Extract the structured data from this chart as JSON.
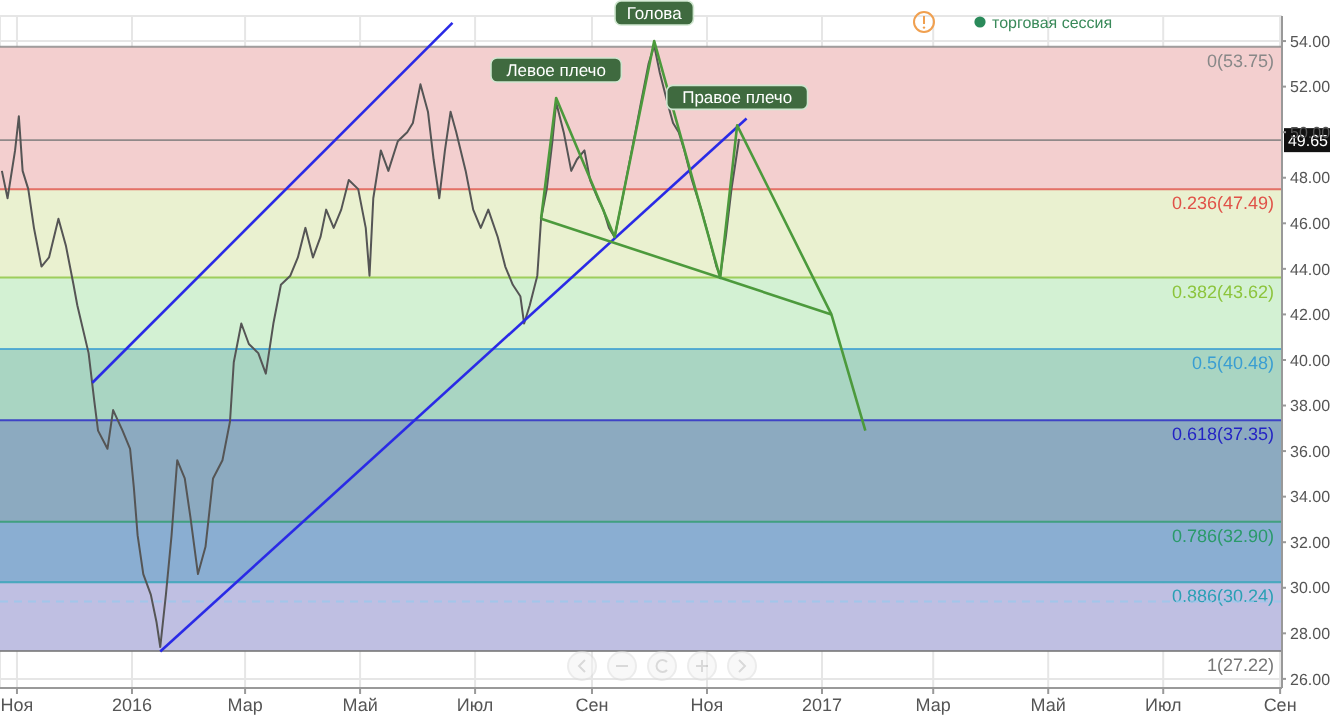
{
  "chart_data": {
    "type": "line",
    "marker": "none",
    "grid": true,
    "annotations": [
      "торговая сессия",
      {
        "text": "Левое плечо",
        "x": "2016-08-13",
        "y": 51.5
      },
      {
        "text": "Голова",
        "x": "2016-10-04",
        "y": 54.0
      },
      {
        "text": "Правое плечо",
        "x": "2016-11-17",
        "y": 50.3
      }
    ],
    "xlim": [
      "2015-10-23",
      "2017-09-02"
    ],
    "xticks": [
      {
        "value": "2015-11-01",
        "label": "Ноя"
      },
      {
        "value": "2016-01-01",
        "label": "2016"
      },
      {
        "value": "2016-03-01",
        "label": "Мар"
      },
      {
        "value": "2016-05-01",
        "label": "Май"
      },
      {
        "value": "2016-07-01",
        "label": "Июл"
      },
      {
        "value": "2016-09-01",
        "label": "Сен"
      },
      {
        "value": "2016-11-01",
        "label": "Ноя"
      },
      {
        "value": "2017-01-01",
        "label": "2017"
      },
      {
        "value": "2017-03-01",
        "label": "Мар"
      },
      {
        "value": "2017-05-01",
        "label": "Май"
      },
      {
        "value": "2017-07-01",
        "label": "Июл"
      },
      {
        "value": "2017-09-01",
        "label": "Сен"
      }
    ],
    "ylim": [
      25.6,
      55.1
    ],
    "yticks": [
      {
        "value": 26,
        "label": "26.00"
      },
      {
        "value": 28,
        "label": "28.00"
      },
      {
        "value": 30,
        "label": "30.00"
      },
      {
        "value": 32,
        "label": "32.00"
      },
      {
        "value": 34,
        "label": "34.00"
      },
      {
        "value": 36,
        "label": "36.00"
      },
      {
        "value": 38,
        "label": "38.00"
      },
      {
        "value": 40,
        "label": "40.00"
      },
      {
        "value": 42,
        "label": "42.00"
      },
      {
        "value": 44,
        "label": "44.00"
      },
      {
        "value": 46,
        "label": "46.00"
      },
      {
        "value": 48,
        "label": "48.00"
      },
      {
        "value": 50,
        "label": "50.00"
      },
      {
        "value": 52,
        "label": "52.00"
      },
      {
        "value": 54,
        "label": "54.00"
      }
    ],
    "bands": [
      {
        "axis": "y",
        "from": 47.49,
        "to": 53.75,
        "color": "#f3cfcf"
      },
      {
        "axis": "y",
        "from": 43.62,
        "to": 47.49,
        "color": "#eaf1d0"
      },
      {
        "axis": "y",
        "from": 40.48,
        "to": 43.62,
        "color": "#d3f1d3"
      },
      {
        "axis": "y",
        "from": 37.35,
        "to": 40.48,
        "color": "#a9d5c2"
      },
      {
        "axis": "y",
        "from": 32.9,
        "to": 37.35,
        "color": "#8caac0"
      },
      {
        "axis": "y",
        "from": 30.24,
        "to": 32.9,
        "color": "#8aaed2"
      },
      {
        "axis": "y",
        "from": 27.22,
        "to": 30.24,
        "color": "#bfbfe2"
      }
    ],
    "ref_lines": [
      {
        "axis": "y",
        "value": 53.75,
        "label": "0(53.75)",
        "color": "#888888"
      },
      {
        "axis": "y",
        "value": 47.49,
        "label": "0.236(47.49)",
        "color": "#e05248"
      },
      {
        "axis": "y",
        "value": 43.62,
        "label": "0.382(43.62)",
        "color": "#8cc43c"
      },
      {
        "axis": "y",
        "value": 40.48,
        "label": "0.5(40.48)",
        "color": "#3a9ed2"
      },
      {
        "axis": "y",
        "value": 37.35,
        "label": "0.618(37.35)",
        "color": "#2424c4"
      },
      {
        "axis": "y",
        "value": 32.9,
        "label": "0.786(32.90)",
        "color": "#2a9a6a"
      },
      {
        "axis": "y",
        "value": 30.24,
        "label": "0.886(30.24)",
        "color": "#2aa0b4"
      },
      {
        "axis": "y",
        "value": 27.22,
        "label": "1(27.22)",
        "color": "#777777"
      },
      {
        "axis": "y",
        "value": 49.65,
        "label": "49.65",
        "color": "#777777"
      },
      {
        "axis": "y",
        "value": 29.4,
        "color": "#9cc8ec",
        "line_style": "dashed"
      }
    ],
    "series": [
      {
        "color": "#555555",
        "x": [
          "2015-10-24",
          "2015-10-27",
          "2015-10-31",
          "2015-11-02",
          "2015-11-04",
          "2015-11-07",
          "2015-11-10",
          "2015-11-14",
          "2015-11-18",
          "2015-11-23",
          "2015-11-27",
          "2015-12-01",
          "2015-12-03",
          "2015-12-09",
          "2015-12-12",
          "2015-12-14",
          "2015-12-19",
          "2015-12-22",
          "2015-12-27",
          "2015-12-31",
          "2016-01-02",
          "2016-01-04",
          "2016-01-07",
          "2016-01-11",
          "2016-01-14",
          "2016-01-16",
          "2016-01-19",
          "2016-01-22",
          "2016-01-25",
          "2016-01-29",
          "2016-02-01",
          "2016-02-05",
          "2016-02-09",
          "2016-02-13",
          "2016-02-18",
          "2016-02-22",
          "2016-02-24",
          "2016-02-28",
          "2016-03-03",
          "2016-03-08",
          "2016-03-12",
          "2016-03-16",
          "2016-03-20",
          "2016-03-25",
          "2016-03-29",
          "2016-04-02",
          "2016-04-06",
          "2016-04-10",
          "2016-04-13",
          "2016-04-17",
          "2016-04-21",
          "2016-04-25",
          "2016-04-30",
          "2016-05-04",
          "2016-05-06",
          "2016-05-08",
          "2016-05-12",
          "2016-05-16",
          "2016-05-21",
          "2016-05-26",
          "2016-05-29",
          "2016-06-02",
          "2016-06-06",
          "2016-06-09",
          "2016-06-12",
          "2016-06-15",
          "2016-06-18",
          "2016-06-21",
          "2016-06-26",
          "2016-06-30",
          "2016-07-04",
          "2016-07-08",
          "2016-07-13",
          "2016-07-17",
          "2016-07-21",
          "2016-07-25",
          "2016-07-27",
          "2016-07-30",
          "2016-08-03",
          "2016-08-05",
          "2016-08-08",
          "2016-08-11",
          "2016-08-13",
          "2016-08-17",
          "2016-08-21",
          "2016-08-24",
          "2016-08-28",
          "2016-08-31",
          "2016-09-04",
          "2016-09-07",
          "2016-09-10",
          "2016-09-13",
          "2016-09-16",
          "2016-09-20",
          "2016-09-24",
          "2016-09-27",
          "2016-10-01",
          "2016-10-04",
          "2016-10-07",
          "2016-10-11",
          "2016-10-14",
          "2016-10-17",
          "2016-10-20",
          "2016-10-24",
          "2016-10-29",
          "2016-11-02",
          "2016-11-06",
          "2016-11-08",
          "2016-11-11",
          "2016-11-14",
          "2016-11-18"
        ],
        "values": [
          48.3,
          47.1,
          49.2,
          50.7,
          48.3,
          47.5,
          45.8,
          44.1,
          44.5,
          46.2,
          45.0,
          43.3,
          42.4,
          40.3,
          38.2,
          36.9,
          36.1,
          37.8,
          36.9,
          36.1,
          34.4,
          32.3,
          30.6,
          29.7,
          28.5,
          27.4,
          29.7,
          32.3,
          35.6,
          34.8,
          33.1,
          30.6,
          31.8,
          34.8,
          35.6,
          37.3,
          39.9,
          41.6,
          40.7,
          40.3,
          39.4,
          41.6,
          43.3,
          43.7,
          44.5,
          45.8,
          44.5,
          45.4,
          46.6,
          45.8,
          46.6,
          47.9,
          47.5,
          45.8,
          43.7,
          47.1,
          49.2,
          48.3,
          49.6,
          50.0,
          50.4,
          52.1,
          50.9,
          48.8,
          47.1,
          49.2,
          50.9,
          50.0,
          48.3,
          46.6,
          45.8,
          46.6,
          45.4,
          44.1,
          43.3,
          42.8,
          41.6,
          42.4,
          43.7,
          46.2,
          47.5,
          49.6,
          51.3,
          50.0,
          48.3,
          48.8,
          49.2,
          47.9,
          47.1,
          46.6,
          45.8,
          45.4,
          46.6,
          48.3,
          50.0,
          51.3,
          53.0,
          53.8,
          52.6,
          51.3,
          50.4,
          50.0,
          49.2,
          47.9,
          46.6,
          45.4,
          44.1,
          43.7,
          45.4,
          47.5,
          49.7
        ]
      },
      {
        "color": "#2a2ae6",
        "x": [
          "2015-12-11",
          "2016-06-19"
        ],
        "values": [
          39.0,
          54.8
        ]
      },
      {
        "color": "#2a2ae6",
        "x": [
          "2016-01-16",
          "2016-11-22"
        ],
        "values": [
          27.2,
          50.6
        ]
      },
      {
        "color": "#4c9a3c",
        "x": [
          "2016-08-05",
          "2016-08-13",
          "2016-09-13",
          "2016-10-04",
          "2016-11-08",
          "2016-11-17",
          "2017-01-06",
          "2017-01-24"
        ],
        "values": [
          46.2,
          51.5,
          45.4,
          54.0,
          43.6,
          50.3,
          42.0,
          36.9
        ]
      },
      {
        "color": "#4c9a3c",
        "x": [
          "2016-08-05",
          "2017-01-06"
        ],
        "values": [
          46.2,
          42.0
        ]
      }
    ]
  }
}
